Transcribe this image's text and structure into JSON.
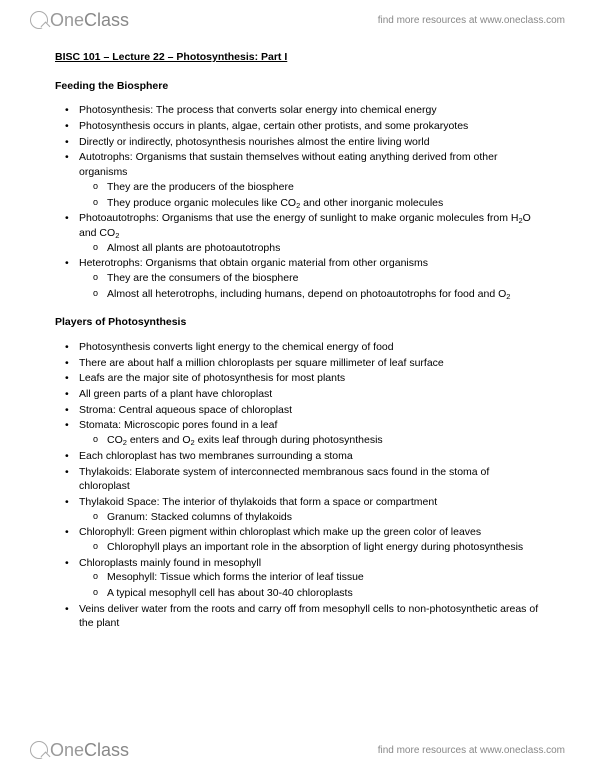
{
  "brand": {
    "part1": "One",
    "part2": "Class"
  },
  "tagline": "find more resources at www.oneclass.com",
  "title": "BISC 101 – Lecture 22 – Photosynthesis: Part I",
  "section1": {
    "heading": "Feeding the Biosphere",
    "items": [
      {
        "text": "Photosynthesis: The process that converts solar energy into chemical energy"
      },
      {
        "text": "Photosynthesis occurs in plants, algae, certain other protists, and some prokaryotes"
      },
      {
        "text": "Directly or indirectly, photosynthesis nourishes almost the entire living world"
      },
      {
        "text": "Autotrophs: Organisms that sustain themselves without eating anything derived from other organisms",
        "sub": [
          "They are the producers of the biosphere",
          "They produce organic molecules like CO₂ and other inorganic molecules"
        ]
      },
      {
        "text": "Photoautotrophs: Organisms that use the energy of sunlight to make organic molecules from H₂O and CO₂",
        "sub": [
          "Almost all plants are photoautotrophs"
        ]
      },
      {
        "text": "Heterotrophs: Organisms that obtain organic material from other organisms",
        "sub": [
          "They are the consumers of the biosphere",
          "Almost all heterotrophs, including humans, depend on photoautotrophs for food and O₂"
        ]
      }
    ]
  },
  "section2": {
    "heading": "Players of Photosynthesis",
    "items": [
      {
        "text": "Photosynthesis converts light energy to the chemical energy of food"
      },
      {
        "text": "There are about half a million chloroplasts per square millimeter of leaf surface"
      },
      {
        "text": "Leafs are the major site of photosynthesis for most plants"
      },
      {
        "text": "All green parts of a plant have chloroplast"
      },
      {
        "text": "Stroma: Central aqueous space of chloroplast"
      },
      {
        "text": "Stomata: Microscopic pores found in a leaf",
        "sub": [
          "CO₂ enters and O₂ exits leaf through during photosynthesis"
        ]
      },
      {
        "text": "Each chloroplast has two membranes surrounding a stoma"
      },
      {
        "text": "Thylakoids: Elaborate system of interconnected membranous sacs found in the stoma of chloroplast"
      },
      {
        "text": "Thylakoid Space: The interior of thylakoids that form a space or compartment",
        "sub": [
          "Granum: Stacked columns of thylakoids"
        ]
      },
      {
        "text": "Chlorophyll: Green pigment within chloroplast which make up the green color of leaves",
        "sub": [
          "Chlorophyll plays an important role in the absorption of light energy during photosynthesis"
        ]
      },
      {
        "text": "Chloroplasts mainly found in mesophyll",
        "sub": [
          "Mesophyll: Tissue which forms the interior of leaf tissue",
          "A typical mesophyll cell has about 30-40 chloroplasts"
        ]
      },
      {
        "text": "Veins deliver water from the roots and carry off from mesophyll cells to non-photosynthetic areas of the plant"
      }
    ]
  }
}
